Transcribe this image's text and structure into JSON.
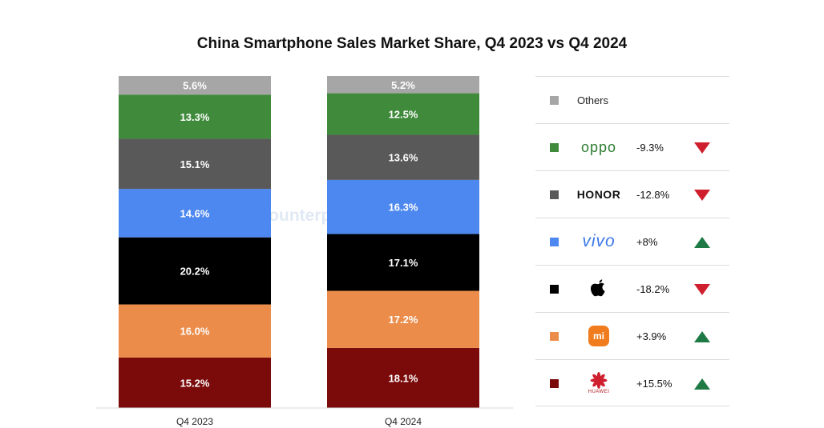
{
  "chart_data": {
    "type": "bar",
    "stacked": true,
    "title": "China Smartphone Sales Market Share, Q4 2023 vs Q4 2024",
    "categories": [
      "Q4 2023",
      "Q4 2024"
    ],
    "series": [
      {
        "name": "Huawei",
        "color": "#7b0b0b",
        "values": [
          15.2,
          18.1
        ],
        "labels": [
          "15.2%",
          "18.1%"
        ]
      },
      {
        "name": "Xiaomi",
        "color": "#eb8c4a",
        "values": [
          16.0,
          17.2
        ],
        "labels": [
          "16.0%",
          "17.2%"
        ]
      },
      {
        "name": "Apple",
        "color": "#000000",
        "values": [
          20.2,
          17.1
        ],
        "labels": [
          "20.2%",
          "17.1%"
        ]
      },
      {
        "name": "vivo",
        "color": "#4d87f0",
        "values": [
          14.6,
          16.3
        ],
        "labels": [
          "14.6%",
          "16.3%"
        ]
      },
      {
        "name": "HONOR",
        "color": "#595959",
        "values": [
          15.1,
          13.6
        ],
        "labels": [
          "15.1%",
          "13.6%"
        ]
      },
      {
        "name": "OPPO",
        "color": "#3f8a3b",
        "values": [
          13.3,
          12.5
        ],
        "labels": [
          "13.3%",
          "12.5%"
        ]
      },
      {
        "name": "Others",
        "color": "#a6a6a6",
        "values": [
          5.6,
          5.2
        ],
        "labels": [
          "5.6%",
          "5.2%"
        ]
      }
    ],
    "ylim": [
      0,
      100
    ],
    "grid": false,
    "legend_position": "right"
  },
  "watermark": {
    "text": "Counterpoint"
  },
  "legend": {
    "others_label": "Others",
    "rows": [
      {
        "brand": "OPPO",
        "logo_text": "oppo",
        "change": "-9.3%",
        "direction": "down",
        "color": "#3f8a3b"
      },
      {
        "brand": "HONOR",
        "logo_text": "HONOR",
        "change": "-12.8%",
        "direction": "down",
        "color": "#595959"
      },
      {
        "brand": "vivo",
        "logo_text": "vivo",
        "change": "+8%",
        "direction": "up",
        "color": "#4d87f0"
      },
      {
        "brand": "Apple",
        "logo_text": "",
        "change": "-18.2%",
        "direction": "down",
        "color": "#000000"
      },
      {
        "brand": "Xiaomi",
        "logo_text": "mi",
        "change": "+3.9%",
        "direction": "up",
        "color": "#eb8c4a"
      },
      {
        "brand": "Huawei",
        "logo_text": "HUAWEI",
        "change": "+15.5%",
        "direction": "up",
        "color": "#7b0b0b"
      }
    ],
    "up_color": "#1e7a45",
    "down_color": "#cf1f2e"
  }
}
